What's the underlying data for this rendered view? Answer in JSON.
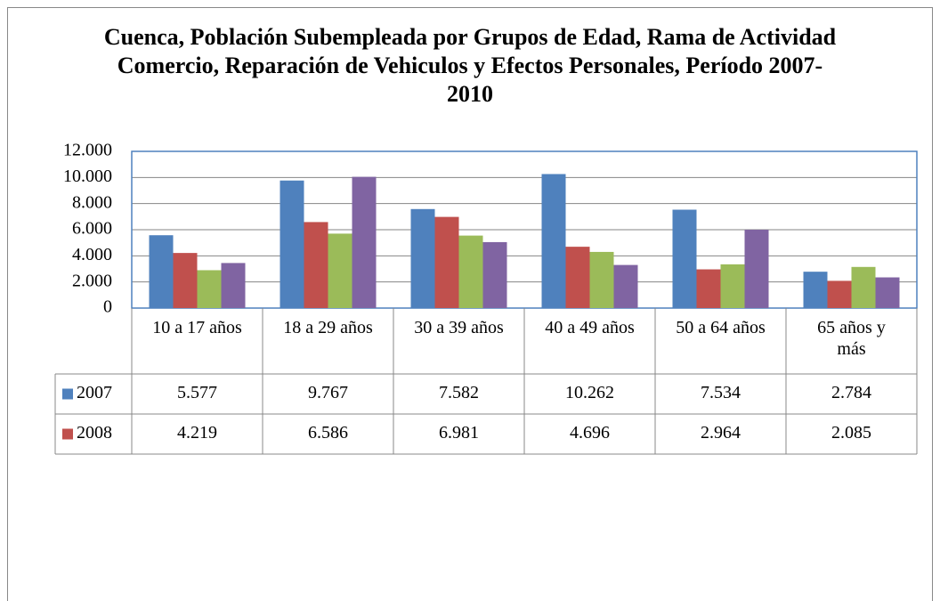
{
  "chart_data": {
    "type": "bar",
    "title": "Cuenca, Población Subempleada por Grupos de Edad, Rama de Actividad Comercio, Reparación de Vehiculos y Efectos Personales, Período 2007-2010",
    "categories": [
      "10 a 17 años",
      "18 a 29 años",
      "30 a 39 años",
      "40 a 49 años",
      "50 a 64 años",
      "65 años y más"
    ],
    "series": [
      {
        "name": "2007",
        "color": "#4f81bd",
        "values": [
          5577,
          9767,
          7582,
          10262,
          7534,
          2784
        ],
        "value_labels": [
          "5.577",
          "9.767",
          "7.582",
          "10.262",
          "7.534",
          "2.784"
        ]
      },
      {
        "name": "2008",
        "color": "#c0504d",
        "values": [
          4219,
          6586,
          6981,
          4696,
          2964,
          2085
        ],
        "value_labels": [
          "4.219",
          "6.586",
          "6.981",
          "4.696",
          "2.964",
          "2.085"
        ]
      },
      {
        "color": "#9bbb59",
        "values": [
          2900,
          5700,
          5550,
          4300,
          3350,
          3150
        ]
      },
      {
        "color": "#8064a2",
        "values": [
          3450,
          10050,
          5050,
          3300,
          6000,
          2350
        ]
      }
    ],
    "ylim": [
      0,
      12000
    ],
    "yticks": [
      0,
      {
        "value": 2000,
        "label": "2.000"
      },
      {
        "value": 4000,
        "label": "4.000"
      },
      {
        "value": 6000,
        "label": "6.000"
      },
      {
        "value": 8000,
        "label": "8.000"
      },
      {
        "value": 10000,
        "label": "10.000"
      },
      {
        "value": 12000,
        "label": "12.000"
      }
    ],
    "grid": true
  }
}
